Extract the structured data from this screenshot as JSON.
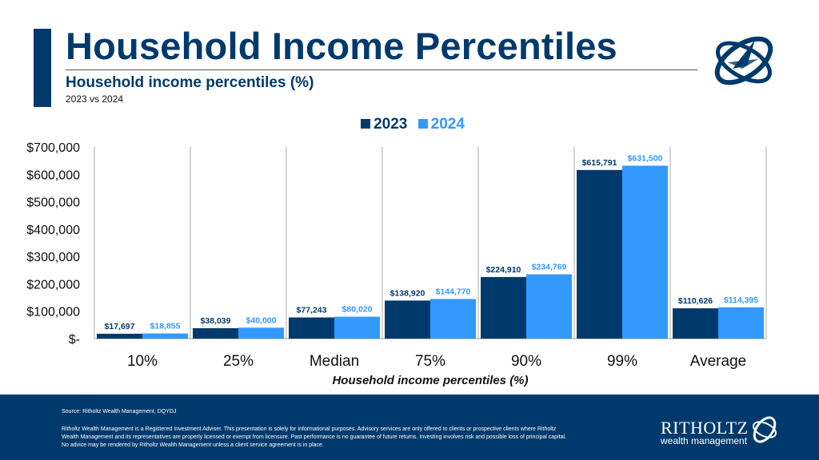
{
  "header": {
    "title": "Household Income Percentiles",
    "subtitle": "Household income percentiles (%)",
    "comparison": "2023 vs 2024"
  },
  "colors": {
    "primary": "#003a6c",
    "series_2023": "#003a6c",
    "series_2024": "#3399ff",
    "gridline": "#c8c8c8"
  },
  "chart_data": {
    "type": "bar",
    "categories": [
      "10%",
      "25%",
      "Median",
      "75%",
      "90%",
      "99%",
      "Average"
    ],
    "series": [
      {
        "name": "2023",
        "values": [
          17697,
          38039,
          77243,
          138920,
          224910,
          615791,
          110626
        ],
        "labels": [
          "$17,697",
          "$38,039",
          "$77,243",
          "$138,920",
          "$224,910",
          "$615,791",
          "$110,626"
        ]
      },
      {
        "name": "2024",
        "values": [
          18855,
          40000,
          80020,
          144770,
          234769,
          631500,
          114395
        ],
        "labels": [
          "$18,855",
          "$40,000",
          "$80,020",
          "$144,770",
          "$234,769",
          "$631,500",
          "$114,395"
        ]
      }
    ],
    "xlabel": "Household income percentiles (%)",
    "ylabel": "",
    "ylim": [
      0,
      700000
    ],
    "yticks": [
      0,
      100000,
      200000,
      300000,
      400000,
      500000,
      600000,
      700000
    ],
    "ytick_labels": [
      "$-",
      "$100,000",
      "$200,000",
      "$300,000",
      "$400,000",
      "$500,000",
      "$600,000",
      "$700,000"
    ],
    "grid": "vertical category separators",
    "legend_position": "top-center"
  },
  "footer": {
    "source": "Source: Ritholtz Wealth Management, DQYDJ",
    "disclaimer": "Ritholtz Wealth Management is a Registered Investment Adviser. This presentation is solely for informational purposes. Advisory services are only offered to clients or prospective clients where Ritholtz Wealth Management and its representatives are properly licensed or exempt from licensure. Past performance is no guarantee of future returns. Investing involves risk and possible loss of principal capital. No advice may be rendered by Ritholtz Wealth Management unless a client service agreement is in place.",
    "brand_name": "RITHOLTZ",
    "brand_sub": "wealth management"
  }
}
